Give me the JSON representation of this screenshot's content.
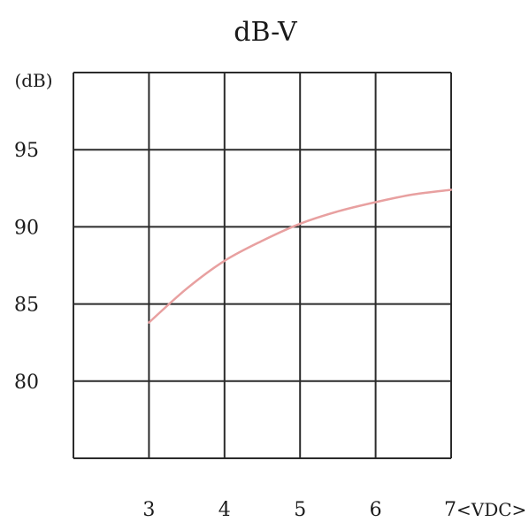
{
  "chart_data": {
    "type": "line",
    "title": "dB-V",
    "ylabel": "(dB)",
    "xlabel": "",
    "x_unit": "<VDC>",
    "xlim": [
      2,
      7
    ],
    "ylim": [
      75,
      100
    ],
    "x_ticks": [
      3,
      4,
      5,
      6,
      7
    ],
    "y_ticks": [
      80,
      85,
      90,
      95
    ],
    "x_tick_labels": [
      "3",
      "4",
      "5",
      "6",
      "7"
    ],
    "y_tick_labels": [
      "80",
      "85",
      "90",
      "95"
    ],
    "grid": true,
    "legend": "none",
    "series": [
      {
        "color": "#e8a0a0",
        "x": [
          3,
          3.5,
          4,
          4.5,
          5,
          5.5,
          6,
          6.5,
          7
        ],
        "y": [
          83.8,
          86.0,
          87.8,
          89.1,
          90.2,
          91.0,
          91.6,
          92.1,
          92.4
        ]
      }
    ]
  }
}
